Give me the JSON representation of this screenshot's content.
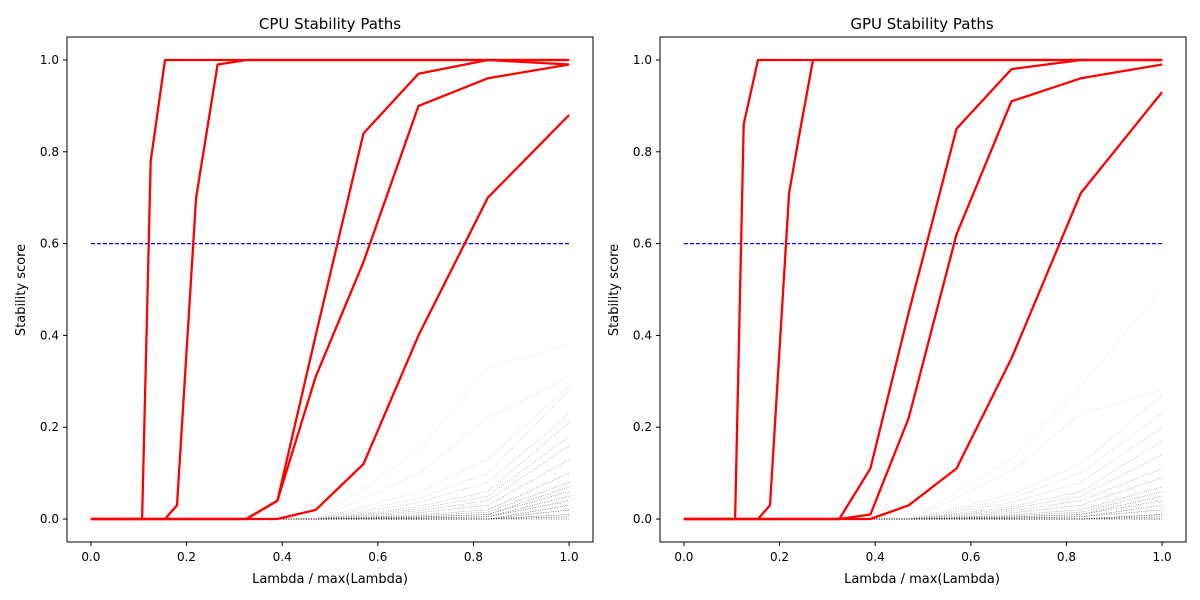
{
  "chart_data": [
    {
      "type": "line",
      "title": "CPU Stability Paths",
      "xlabel": "Lambda / max(Lambda)",
      "ylabel": "Stability score",
      "xlim": [
        -0.05,
        1.05
      ],
      "ylim": [
        -0.05,
        1.05
      ],
      "xticks": [
        "0.0",
        "0.2",
        "0.4",
        "0.6",
        "0.8",
        "1.0"
      ],
      "yticks": [
        "0.0",
        "0.2",
        "0.4",
        "0.6",
        "0.8",
        "1.0"
      ],
      "grid": false,
      "threshold": {
        "y": 0.6,
        "style": "dashed",
        "color": "#0000ff"
      },
      "highlight_color": "#ff0000",
      "background_color": "#000000",
      "x": [
        0.0,
        0.107,
        0.125,
        0.155,
        0.18,
        0.22,
        0.265,
        0.325,
        0.39,
        0.47,
        0.57,
        0.685,
        0.83,
        1.0
      ],
      "series": [
        {
          "values": [
            0,
            0,
            0.78,
            1.0,
            1.0,
            1.0,
            1.0,
            1.0,
            1.0,
            1.0,
            1.0,
            1.0,
            1.0,
            1.0
          ]
        },
        {
          "values": [
            0,
            0,
            0,
            0,
            0.03,
            0.7,
            0.99,
            1.0,
            1.0,
            1.0,
            1.0,
            1.0,
            1.0,
            0.99
          ]
        },
        {
          "values": [
            0,
            0,
            0,
            0,
            0,
            0,
            0,
            0,
            0.04,
            0.4,
            0.84,
            0.97,
            1.0,
            1.0
          ]
        },
        {
          "values": [
            0,
            0,
            0,
            0,
            0,
            0,
            0,
            0,
            0.04,
            0.31,
            0.56,
            0.9,
            0.96,
            0.99
          ]
        },
        {
          "values": [
            0,
            0,
            0,
            0,
            0,
            0,
            0,
            0,
            0,
            0.02,
            0.12,
            0.4,
            0.7,
            0.88
          ]
        }
      ],
      "background_series_endpoints": [
        0.38,
        0.31,
        0.29,
        0.28,
        0.23,
        0.21,
        0.18,
        0.16,
        0.13,
        0.1,
        0.08,
        0.07,
        0.06,
        0.05,
        0.04,
        0.03,
        0.02,
        0.01,
        0.005,
        0.0
      ],
      "background_series_mid": [
        0.33,
        0.22,
        0.13,
        0.1,
        0.08,
        0.06,
        0.05,
        0.04,
        0.03,
        0.02,
        0.015,
        0.01,
        0.01,
        0.005,
        0.005,
        0.0,
        0.0,
        0.0,
        0.0,
        0.0
      ]
    },
    {
      "type": "line",
      "title": "GPU Stability Paths",
      "xlabel": "Lambda / max(Lambda)",
      "ylabel": "Stability score",
      "xlim": [
        -0.05,
        1.05
      ],
      "ylim": [
        -0.05,
        1.05
      ],
      "xticks": [
        "0.0",
        "0.2",
        "0.4",
        "0.6",
        "0.8",
        "1.0"
      ],
      "yticks": [
        "0.0",
        "0.2",
        "0.4",
        "0.6",
        "0.8",
        "1.0"
      ],
      "grid": false,
      "threshold": {
        "y": 0.6,
        "style": "dashed",
        "color": "#0000ff"
      },
      "highlight_color": "#ff0000",
      "background_color": "#000000",
      "x": [
        0.0,
        0.107,
        0.125,
        0.155,
        0.18,
        0.22,
        0.24,
        0.27,
        0.325,
        0.39,
        0.47,
        0.57,
        0.685,
        0.83,
        1.0
      ],
      "series": [
        {
          "values": [
            0,
            0,
            0.86,
            1.0,
            1.0,
            1.0,
            1.0,
            1.0,
            1.0,
            1.0,
            1.0,
            1.0,
            1.0,
            1.0,
            1.0
          ]
        },
        {
          "values": [
            0,
            0,
            0,
            0,
            0.03,
            0.71,
            0.83,
            1.0,
            1.0,
            1.0,
            1.0,
            1.0,
            1.0,
            1.0,
            1.0
          ]
        },
        {
          "values": [
            0,
            0,
            0,
            0,
            0,
            0,
            0,
            0,
            0,
            0.11,
            0.45,
            0.85,
            0.98,
            1.0,
            1.0
          ]
        },
        {
          "values": [
            0,
            0,
            0,
            0,
            0,
            0,
            0,
            0,
            0,
            0.01,
            0.22,
            0.62,
            0.91,
            0.96,
            0.99
          ]
        },
        {
          "values": [
            0,
            0,
            0,
            0,
            0,
            0,
            0,
            0,
            0,
            0,
            0.03,
            0.11,
            0.35,
            0.71,
            0.93
          ]
        }
      ],
      "background_series_endpoints": [
        0.5,
        0.28,
        0.27,
        0.23,
        0.2,
        0.17,
        0.14,
        0.11,
        0.09,
        0.07,
        0.06,
        0.05,
        0.04,
        0.03,
        0.02,
        0.01,
        0.01,
        0.005,
        0.0,
        0.0
      ],
      "background_series_mid": [
        0.29,
        0.23,
        0.12,
        0.1,
        0.08,
        0.06,
        0.05,
        0.04,
        0.03,
        0.02,
        0.015,
        0.01,
        0.01,
        0.005,
        0.005,
        0.0,
        0.0,
        0.0,
        0.0,
        0.0
      ]
    }
  ]
}
